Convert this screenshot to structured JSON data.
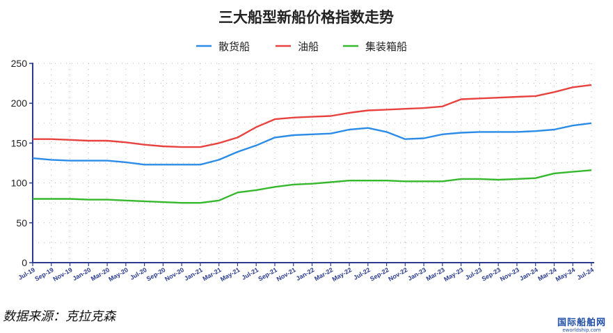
{
  "chart_data": {
    "type": "line",
    "title": "三大船型新船价格指数走势",
    "ylim": [
      0,
      250
    ],
    "yticks": [
      0,
      50,
      100,
      150,
      200,
      250
    ],
    "grid": true,
    "legend_position": "top-center",
    "x": [
      "Jul-19",
      "Sep-19",
      "Nov-19",
      "Jan-20",
      "Mar-20",
      "May-20",
      "Jul-20",
      "Sep-20",
      "Nov-20",
      "Jan-21",
      "Mar-21",
      "May-21",
      "Jul-21",
      "Sep-21",
      "Nov-21",
      "Jan-22",
      "Mar-22",
      "May-22",
      "Jul-22",
      "Sep-22",
      "Nov-22",
      "Jan-23",
      "Mar-23",
      "May-23",
      "Jul-23",
      "Sep-23",
      "Nov-23",
      "Jan-24",
      "Mar-24",
      "May-24",
      "Jul-24"
    ],
    "series": [
      {
        "name": "散货船",
        "color": "#2b8ce8",
        "values": [
          131,
          129,
          128,
          128,
          128,
          126,
          123,
          123,
          123,
          123,
          129,
          139,
          147,
          157,
          160,
          161,
          162,
          167,
          169,
          164,
          155,
          156,
          161,
          163,
          164,
          164,
          164,
          165,
          167,
          172,
          175
        ]
      },
      {
        "name": "油船",
        "color": "#e8423f",
        "values": [
          155,
          155,
          154,
          153,
          153,
          151,
          148,
          146,
          145,
          145,
          150,
          157,
          170,
          180,
          182,
          183,
          184,
          188,
          191,
          192,
          193,
          194,
          196,
          205,
          206,
          207,
          208,
          209,
          214,
          220,
          223
        ]
      },
      {
        "name": "集装箱船",
        "color": "#36b82c",
        "values": [
          80,
          80,
          80,
          79,
          79,
          78,
          77,
          76,
          75,
          75,
          78,
          88,
          91,
          95,
          98,
          99,
          101,
          103,
          103,
          103,
          102,
          102,
          102,
          105,
          105,
          104,
          105,
          106,
          112,
          114,
          116
        ]
      }
    ]
  },
  "source_label": "数据来源：克拉克森",
  "watermark": {
    "cn": "国际船舶网",
    "en": "eworldship.com"
  }
}
